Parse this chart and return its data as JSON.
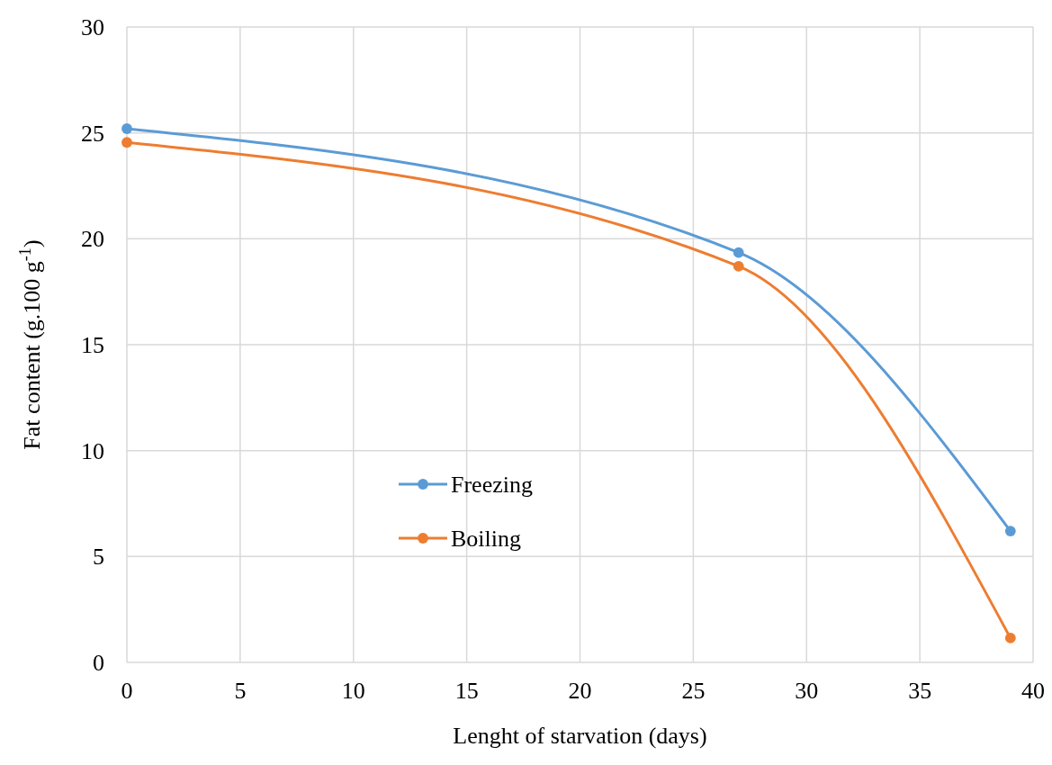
{
  "chart_data": {
    "type": "line",
    "xlabel": "Lenght of starvation (days)",
    "ylabel": "Fat content (g.100 g$^{-1}$)",
    "x": [
      0,
      27,
      39
    ],
    "series": [
      {
        "name": "Freezing",
        "color": "#5b9bd5",
        "values": [
          25.2,
          19.35,
          6.2
        ]
      },
      {
        "name": "Boiling",
        "color": "#ed7d31",
        "values": [
          24.55,
          18.7,
          1.15
        ]
      }
    ],
    "xlim": [
      0,
      40
    ],
    "xticks": [
      0,
      5,
      10,
      15,
      20,
      25,
      30,
      35,
      40
    ],
    "ylim": [
      0,
      30
    ],
    "yticks": [
      0,
      5,
      10,
      15,
      20,
      25,
      30
    ],
    "grid": true,
    "legend": "center",
    "marker": "circle",
    "line_style": "solid"
  }
}
